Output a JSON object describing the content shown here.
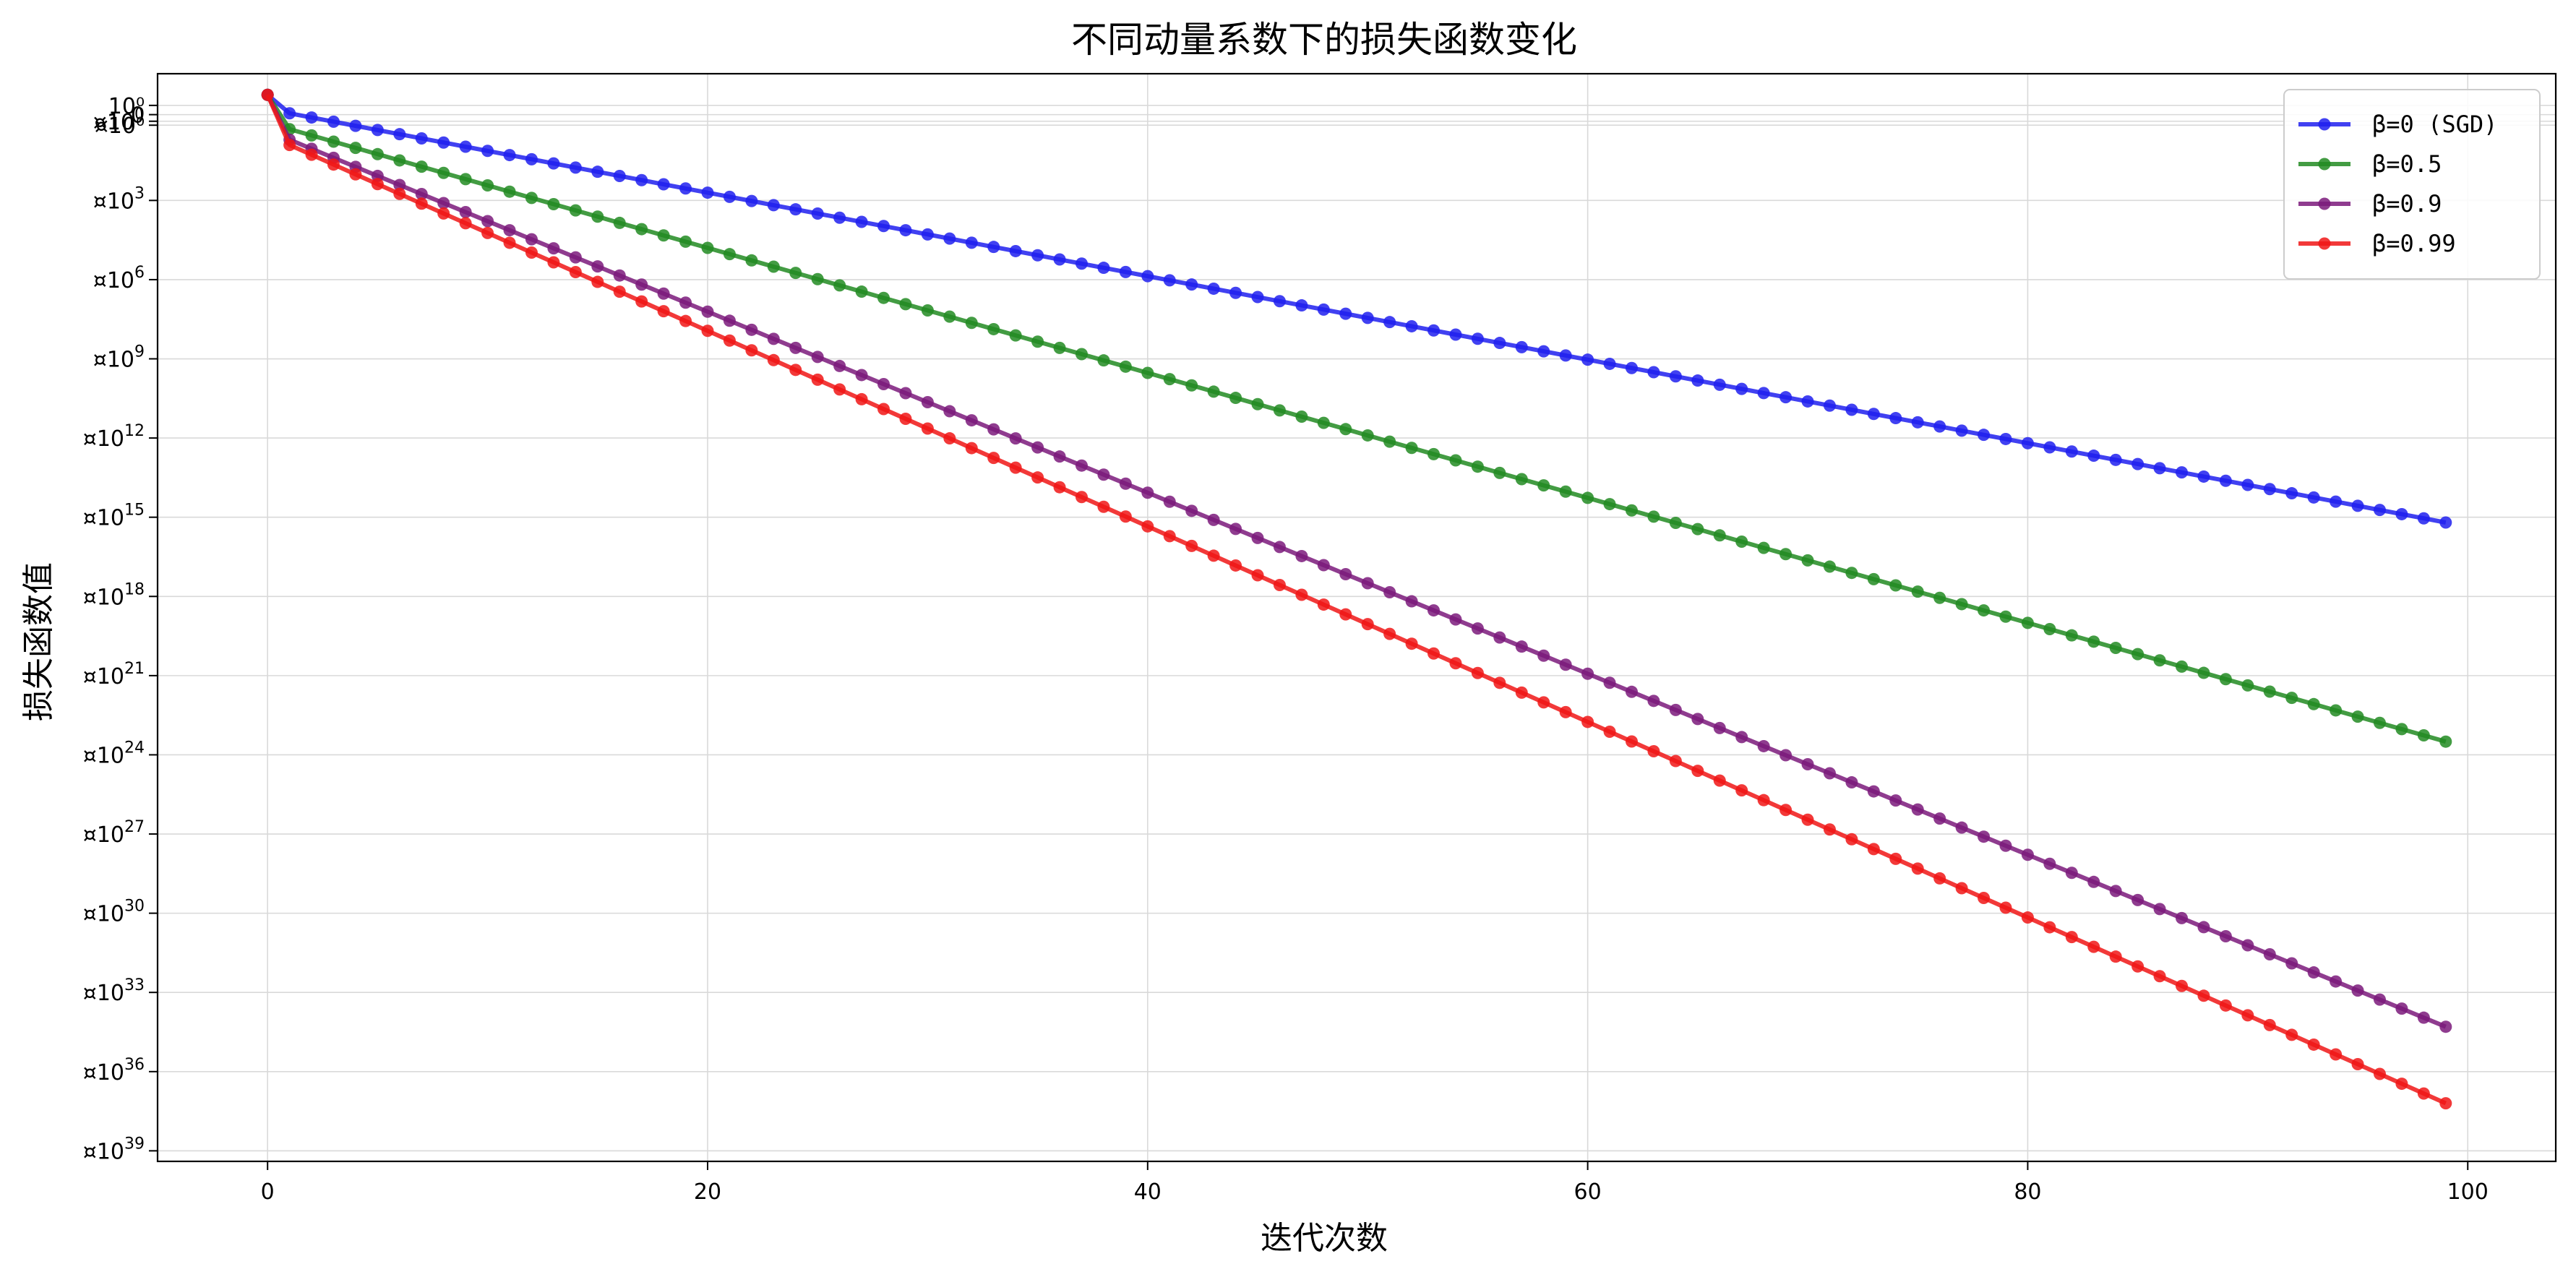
{
  "chart_data": {
    "type": "line",
    "title": "不同动量系数下的损失函数变化",
    "xlabel": "迭代次数",
    "ylabel": "损失函数值",
    "xlim": [
      -5,
      104
    ],
    "x_ticks": [
      "0",
      "20",
      "40",
      "60",
      "80",
      "100"
    ],
    "x_tick_values": [
      0,
      20,
      40,
      60,
      80,
      100
    ],
    "y_scale": "log",
    "y_ticks_exponents": [
      0,
      3,
      6,
      9,
      12,
      15,
      18,
      21,
      24,
      27,
      30,
      33,
      36,
      39
    ],
    "y_tick_prefix": "¤10",
    "y_top_labels": [
      "10⁰",
      "0",
      "¤10⁰"
    ],
    "grid": true,
    "legend_position": "top-right",
    "series": [
      {
        "name": "β=0 (SGD)",
        "color": "#2020ee",
        "x_start": 0,
        "x_end": 99,
        "values_log10": {
          "start": 1.0,
          "at_1": 0.3,
          "end": -15.2
        }
      },
      {
        "name": "β=0.5",
        "color": "#228b22",
        "x_start": 0,
        "x_end": 99,
        "values_log10": {
          "start": 1.0,
          "at_1": -0.3,
          "end": -23.5
        }
      },
      {
        "name": "β=0.9",
        "color": "#7b1a7b",
        "x_start": 0,
        "x_end": 99,
        "values_log10": {
          "start": 1.0,
          "at_1": -0.7,
          "end": -34.3
        }
      },
      {
        "name": "β=0.99",
        "color": "#f01616",
        "x_start": 0,
        "x_end": 99,
        "values_log10": {
          "start": 1.0,
          "at_1": -0.9,
          "end": -37.2
        }
      }
    ]
  }
}
